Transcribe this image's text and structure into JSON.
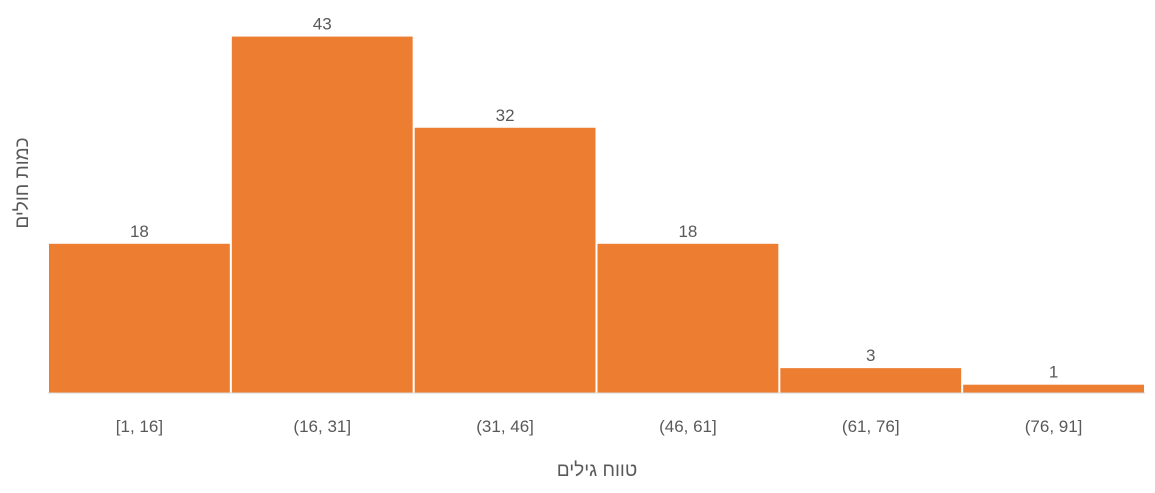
{
  "chart_data": {
    "type": "bar",
    "title": "",
    "xlabel": "טווח גילים",
    "ylabel": "כמות חולים",
    "categories": [
      "[1, 16]",
      "(16, 31]",
      "(31, 46]",
      "(46, 61]",
      "(61, 76]",
      "(76, 91]"
    ],
    "values": [
      18,
      43,
      32,
      18,
      3,
      1
    ],
    "ylim": [
      0,
      45
    ],
    "grid": false,
    "legend": "none",
    "data_labels": true,
    "bar_color": "#ED7D31",
    "axis_color": "#D9D9D9",
    "text_color": "#595959"
  }
}
